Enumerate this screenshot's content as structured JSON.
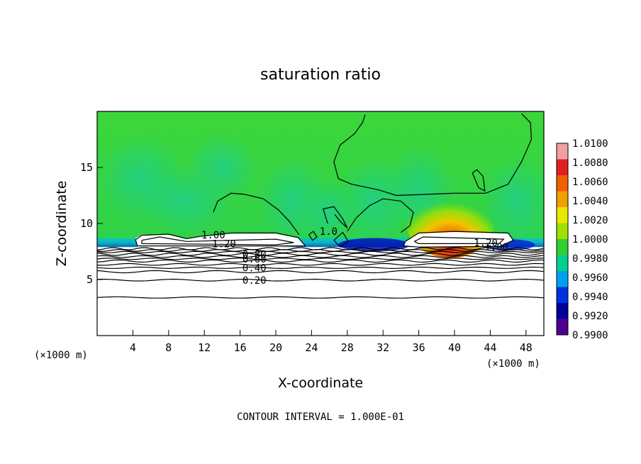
{
  "chart_data": {
    "type": "heatmap",
    "title": "saturation ratio",
    "xlabel": "X-coordinate",
    "ylabel": "Z-coordinate",
    "x_unit": "(×1000 m)",
    "x_unit_right": "(×1000 m)",
    "footer": "CONTOUR INTERVAL = 1.000E-01",
    "xlim": [
      0,
      50
    ],
    "ylim": [
      0,
      20
    ],
    "x_ticks": [
      4,
      8,
      12,
      16,
      20,
      24,
      28,
      32,
      36,
      40,
      44,
      48
    ],
    "y_ticks": [
      5,
      10,
      15
    ],
    "colorbar": {
      "min": 0.99,
      "max": 1.01,
      "levels": [
        "1.0100",
        "1.0080",
        "1.0060",
        "1.0040",
        "1.0020",
        "1.0000",
        "0.9980",
        "0.9960",
        "0.9940",
        "0.9920",
        "0.9900"
      ],
      "colors": [
        "#f0a0a0",
        "#e02020",
        "#f06000",
        "#f0a000",
        "#e8e800",
        "#a0e000",
        "#30d030",
        "#00d090",
        "#00a0f0",
        "#0030e0",
        "#00009a",
        "#500090"
      ]
    },
    "contour_labels": [
      {
        "text": "1.00",
        "x": 13.0,
        "z": 9.0
      },
      {
        "text": "1.20",
        "x": 14.2,
        "z": 8.2
      },
      {
        "text": "0.80",
        "x": 17.6,
        "z": 7.25
      },
      {
        "text": "0.60",
        "x": 17.6,
        "z": 6.85
      },
      {
        "text": "0.40",
        "x": 17.6,
        "z": 6.05
      },
      {
        "text": "0.20",
        "x": 17.6,
        "z": 4.95
      },
      {
        "text": "1.20",
        "x": 43.5,
        "z": 8.3
      },
      {
        "text": "1.00",
        "x": 44.7,
        "z": 7.9
      },
      {
        "text": "1.0",
        "x": 25.9,
        "z": 9.3
      }
    ]
  }
}
